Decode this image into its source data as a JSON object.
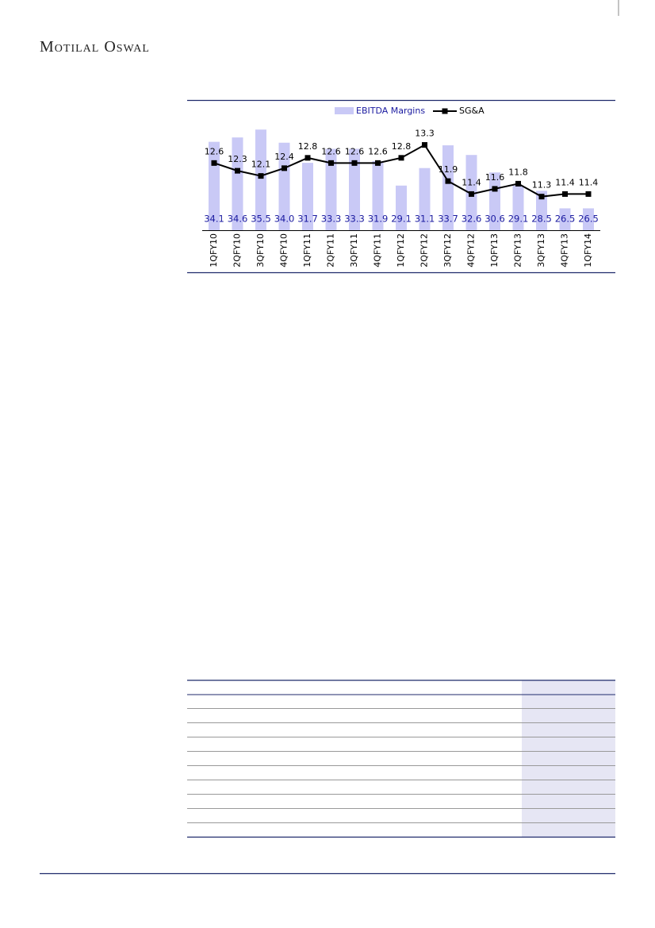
{
  "header": {
    "brand": "Motilal Oswal"
  },
  "chart_data": {
    "type": "combo",
    "categories": [
      "1QFY10",
      "2QFY10",
      "3QFY10",
      "4QFY10",
      "1QFY11",
      "2QFY11",
      "3QFY11",
      "4QFY11",
      "1QFY12",
      "2QFY12",
      "3QFY12",
      "4QFY12",
      "1QFY13",
      "2QFY13",
      "3QFY13",
      "4QFY13",
      "1QFY14"
    ],
    "series": [
      {
        "name": "EBITDA Margins",
        "type": "bar",
        "color": "#c9c9f6",
        "label_color": "#1a1aa0",
        "values": [
          34.1,
          34.6,
          35.5,
          34.0,
          31.7,
          33.3,
          33.3,
          31.9,
          29.1,
          31.1,
          33.7,
          32.6,
          30.6,
          29.1,
          28.5,
          26.5,
          26.5
        ],
        "value_labels": [
          "34.1",
          "34.6",
          "35.5",
          "34.0",
          "31.7",
          "33.3",
          "33.3",
          "31.9",
          "29.1",
          "31.1",
          "33.7",
          "32.6",
          "30.6",
          "29.1",
          "28.5",
          "26.5",
          "26.5"
        ]
      },
      {
        "name": "SG&A",
        "type": "line",
        "color": "#000000",
        "axis": "y2",
        "values": [
          12.6,
          12.3,
          12.1,
          12.4,
          12.8,
          12.6,
          12.6,
          12.6,
          12.8,
          13.3,
          11.9,
          11.4,
          11.6,
          11.8,
          11.3,
          11.4,
          11.4
        ]
      }
    ],
    "ylim": [
      24,
      36.7
    ],
    "y2lim": [
      10,
      14.3
    ]
  }
}
